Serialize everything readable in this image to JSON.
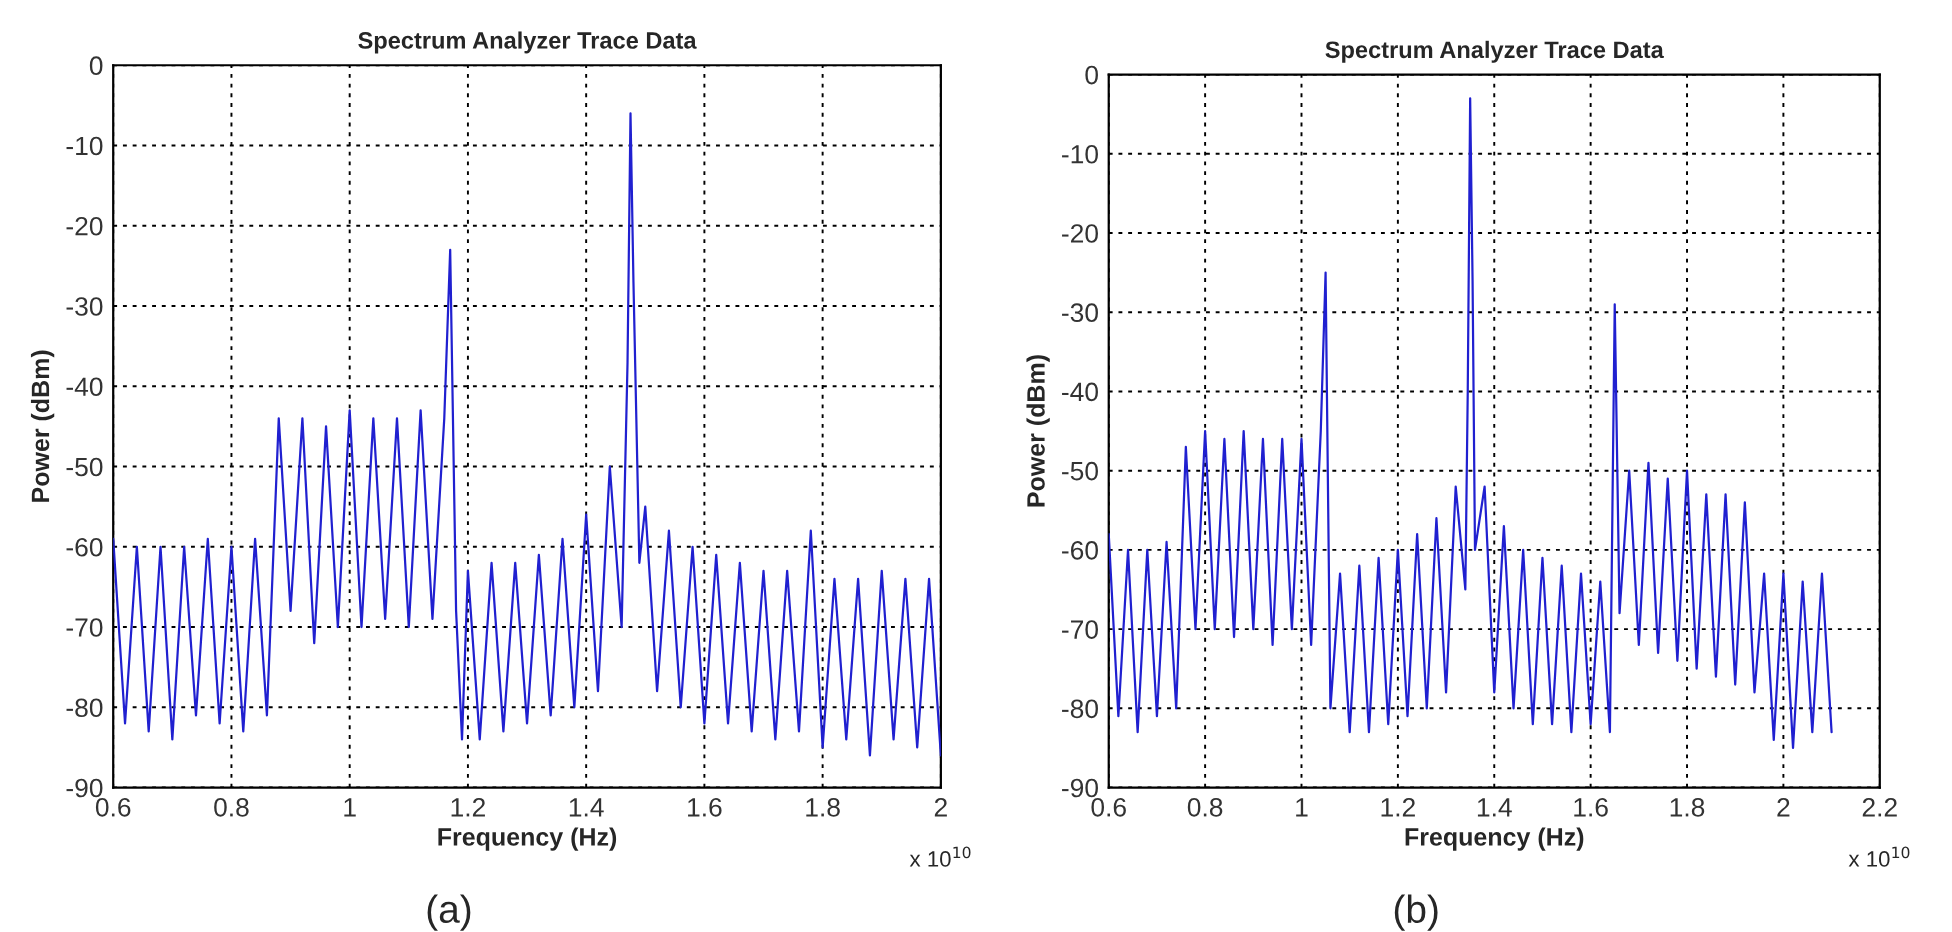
{
  "chart_data": [
    {
      "type": "line",
      "title": "Spectrum Analyzer Trace Data",
      "xlabel": "Frequency (Hz)",
      "ylabel": "Power (dBm)",
      "x": [
        0.6,
        0.62,
        0.64,
        0.66,
        0.68,
        0.7,
        0.72,
        0.74,
        0.76,
        0.78,
        0.8,
        0.82,
        0.84,
        0.86,
        0.88,
        0.9,
        0.92,
        0.94,
        0.96,
        0.98,
        1.0,
        1.02,
        1.04,
        1.06,
        1.08,
        1.1,
        1.12,
        1.14,
        1.16,
        1.17,
        1.18,
        1.19,
        1.2,
        1.22,
        1.24,
        1.26,
        1.28,
        1.3,
        1.32,
        1.34,
        1.36,
        1.38,
        1.4,
        1.42,
        1.44,
        1.46,
        1.47,
        1.475,
        1.48,
        1.49,
        1.5,
        1.52,
        1.54,
        1.56,
        1.58,
        1.6,
        1.62,
        1.64,
        1.66,
        1.68,
        1.7,
        1.72,
        1.74,
        1.76,
        1.78,
        1.8,
        1.82,
        1.84,
        1.86,
        1.88,
        1.9,
        1.92,
        1.94,
        1.96,
        1.98,
        2.0
      ],
      "series": [
        {
          "color": "#2020d0",
          "values": [
            -59,
            -82,
            -60,
            -83,
            -60,
            -84,
            -60,
            -81,
            -59,
            -82,
            -60,
            -83,
            -59,
            -81,
            -44,
            -68,
            -44,
            -72,
            -45,
            -70,
            -43,
            -70,
            -44,
            -69,
            -44,
            -70,
            -43,
            -69,
            -44,
            -23,
            -68,
            -84,
            -63,
            -84,
            -62,
            -83,
            -62,
            -82,
            -61,
            -81,
            -59,
            -80,
            -56,
            -78,
            -50,
            -70,
            -37,
            -6,
            -27,
            -62,
            -55,
            -78,
            -58,
            -80,
            -60,
            -82,
            -61,
            -82,
            -62,
            -83,
            -63,
            -84,
            -63,
            -83,
            -58,
            -85,
            -64,
            -84,
            -64,
            -86,
            -63,
            -84,
            -64,
            -85,
            -64,
            -86
          ]
        }
      ],
      "xlim": [
        0.6,
        2
      ],
      "xticks": [
        0.6,
        0.8,
        1,
        1.2,
        1.4,
        1.6,
        1.8,
        2
      ],
      "ylim": [
        -90,
        0
      ],
      "yticks": [
        -90,
        -80,
        -70,
        -60,
        -50,
        -40,
        -30,
        -20,
        -10,
        0
      ],
      "grid": true,
      "line_style": "solid",
      "marker": "none",
      "annotations": [
        "x 10$^{10}$",
        "(a)"
      ]
    },
    {
      "type": "line",
      "title": "Spectrum Analyzer Trace Data",
      "xlabel": "Frequency (Hz)",
      "ylabel": "Power (dBm)",
      "x": [
        0.6,
        0.62,
        0.64,
        0.66,
        0.68,
        0.7,
        0.72,
        0.74,
        0.76,
        0.78,
        0.8,
        0.82,
        0.84,
        0.86,
        0.88,
        0.9,
        0.92,
        0.94,
        0.96,
        0.98,
        1.0,
        1.02,
        1.04,
        1.05,
        1.06,
        1.08,
        1.1,
        1.12,
        1.14,
        1.16,
        1.18,
        1.2,
        1.22,
        1.24,
        1.26,
        1.28,
        1.3,
        1.32,
        1.34,
        1.345,
        1.35,
        1.355,
        1.36,
        1.38,
        1.4,
        1.42,
        1.44,
        1.46,
        1.48,
        1.5,
        1.52,
        1.54,
        1.56,
        1.58,
        1.6,
        1.62,
        1.64,
        1.65,
        1.66,
        1.68,
        1.7,
        1.72,
        1.74,
        1.76,
        1.78,
        1.8,
        1.82,
        1.84,
        1.86,
        1.88,
        1.9,
        1.92,
        1.94,
        1.96,
        1.98,
        2.0,
        2.02,
        2.04,
        2.06,
        2.08,
        2.1
      ],
      "series": [
        {
          "color": "#2020d0",
          "values": [
            -58,
            -81,
            -60,
            -83,
            -60,
            -81,
            -59,
            -80,
            -47,
            -70,
            -45,
            -70,
            -46,
            -71,
            -45,
            -70,
            -46,
            -72,
            -46,
            -70,
            -46,
            -72,
            -45,
            -25,
            -80,
            -63,
            -83,
            -62,
            -83,
            -61,
            -82,
            -60,
            -81,
            -58,
            -80,
            -56,
            -78,
            -52,
            -65,
            -40,
            -3,
            -26,
            -60,
            -52,
            -78,
            -57,
            -80,
            -60,
            -82,
            -61,
            -82,
            -62,
            -83,
            -63,
            -82,
            -64,
            -83,
            -29,
            -68,
            -50,
            -72,
            -49,
            -73,
            -51,
            -74,
            -50,
            -75,
            -53,
            -76,
            -53,
            -77,
            -54,
            -78,
            -63,
            -84,
            -63,
            -85,
            -64,
            -83,
            -63,
            -83
          ]
        }
      ],
      "xlim": [
        0.6,
        2.2
      ],
      "xticks": [
        0.6,
        0.8,
        1,
        1.2,
        1.4,
        1.6,
        1.8,
        2,
        2.2
      ],
      "ylim": [
        -90,
        0
      ],
      "yticks": [
        -90,
        -80,
        -70,
        -60,
        -50,
        -40,
        -30,
        -20,
        -10,
        0
      ],
      "grid": true,
      "line_style": "solid",
      "marker": "none",
      "annotations": [
        "x 10$^{10}$",
        "(b)"
      ]
    }
  ]
}
